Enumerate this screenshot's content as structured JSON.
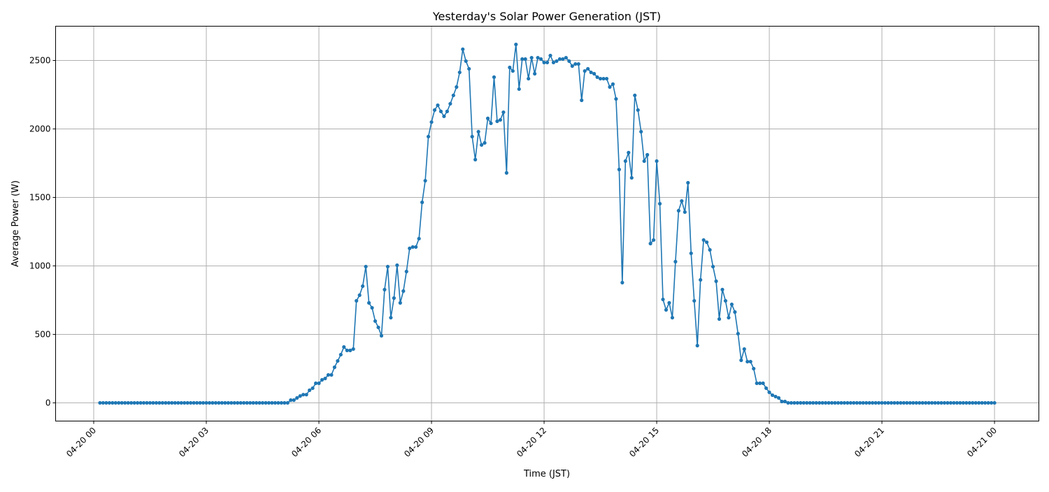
{
  "chart_data": {
    "type": "line",
    "title": "Yesterday's Solar Power Generation (JST)",
    "xlabel": "Time (JST)",
    "ylabel": "Average Power (W)",
    "xlim_hours_from": "04-20 00",
    "ylim": [
      -133,
      2750
    ],
    "grid": true,
    "color": "#1f77b4",
    "marker": "circle",
    "xtick_labels": [
      "04-20 00",
      "04-20 03",
      "04-20 06",
      "04-20 09",
      "04-20 12",
      "04-20 15",
      "04-20 18",
      "04-20 21",
      "04-21 00"
    ],
    "ytick_values": [
      0,
      500,
      1000,
      1500,
      2000,
      2500
    ],
    "series": [
      {
        "x": [
          "04-20 00:10",
          "04-20 00:15",
          "04-20 00:20",
          "04-20 00:25",
          "04-20 00:30",
          "04-20 00:35",
          "04-20 00:40",
          "04-20 00:45",
          "04-20 00:50",
          "04-20 00:55",
          "04-20 01:00",
          "04-20 01:05",
          "04-20 01:10",
          "04-20 01:15",
          "04-20 01:20",
          "04-20 01:25",
          "04-20 01:30",
          "04-20 01:35",
          "04-20 01:40",
          "04-20 01:45",
          "04-20 01:50",
          "04-20 01:55",
          "04-20 02:00",
          "04-20 02:05",
          "04-20 02:10",
          "04-20 02:15",
          "04-20 02:20",
          "04-20 02:25",
          "04-20 02:30",
          "04-20 02:35",
          "04-20 02:40",
          "04-20 02:45",
          "04-20 02:50",
          "04-20 02:55",
          "04-20 03:00",
          "04-20 03:05",
          "04-20 03:10",
          "04-20 03:15",
          "04-20 03:20",
          "04-20 03:25",
          "04-20 03:30",
          "04-20 03:35",
          "04-20 03:40",
          "04-20 03:45",
          "04-20 03:50",
          "04-20 03:55",
          "04-20 04:00",
          "04-20 04:05",
          "04-20 04:10",
          "04-20 04:15",
          "04-20 04:20",
          "04-20 04:25",
          "04-20 04:30",
          "04-20 04:35",
          "04-20 04:40",
          "04-20 04:45",
          "04-20 04:50",
          "04-20 04:55",
          "04-20 05:00",
          "04-20 05:05",
          "04-20 05:10",
          "04-20 05:15",
          "04-20 05:20",
          "04-20 05:25",
          "04-20 05:30",
          "04-20 05:35",
          "04-20 05:40",
          "04-20 05:45",
          "04-20 05:50",
          "04-20 05:55",
          "04-20 06:00",
          "04-20 06:05",
          "04-20 06:10",
          "04-20 06:15",
          "04-20 06:20",
          "04-20 06:25",
          "04-20 06:30",
          "04-20 06:35",
          "04-20 06:40",
          "04-20 06:45",
          "04-20 06:50",
          "04-20 06:55",
          "04-20 07:00",
          "04-20 07:05",
          "04-20 07:10",
          "04-20 07:15",
          "04-20 07:20",
          "04-20 07:25",
          "04-20 07:30",
          "04-20 07:35",
          "04-20 07:40",
          "04-20 07:45",
          "04-20 07:50",
          "04-20 07:55",
          "04-20 08:00",
          "04-20 08:05",
          "04-20 08:10",
          "04-20 08:15",
          "04-20 08:20",
          "04-20 08:25",
          "04-20 08:30",
          "04-20 08:35",
          "04-20 08:40",
          "04-20 08:45",
          "04-20 08:50",
          "04-20 08:55",
          "04-20 09:00",
          "04-20 09:05",
          "04-20 09:10",
          "04-20 09:15",
          "04-20 09:20",
          "04-20 09:25",
          "04-20 09:30",
          "04-20 09:35",
          "04-20 09:40",
          "04-20 09:45",
          "04-20 09:50",
          "04-20 09:55",
          "04-20 10:00",
          "04-20 10:05",
          "04-20 10:10",
          "04-20 10:15",
          "04-20 10:20",
          "04-20 10:25",
          "04-20 10:30",
          "04-20 10:35",
          "04-20 10:40",
          "04-20 10:45",
          "04-20 10:50",
          "04-20 10:55",
          "04-20 11:00",
          "04-20 11:05",
          "04-20 11:10",
          "04-20 11:15",
          "04-20 11:20",
          "04-20 11:25",
          "04-20 11:30",
          "04-20 11:35",
          "04-20 11:40",
          "04-20 11:45",
          "04-20 11:50",
          "04-20 11:55",
          "04-20 12:00",
          "04-20 12:05",
          "04-20 12:10",
          "04-20 12:15",
          "04-20 12:20",
          "04-20 12:25",
          "04-20 12:30",
          "04-20 12:35",
          "04-20 12:40",
          "04-20 12:45",
          "04-20 12:50",
          "04-20 12:55",
          "04-20 13:00",
          "04-20 13:05",
          "04-20 13:10",
          "04-20 13:15",
          "04-20 13:20",
          "04-20 13:25",
          "04-20 13:30",
          "04-20 13:35",
          "04-20 13:40",
          "04-20 13:45",
          "04-20 13:50",
          "04-20 13:55",
          "04-20 14:00",
          "04-20 14:05",
          "04-20 14:10",
          "04-20 14:15",
          "04-20 14:20",
          "04-20 14:25",
          "04-20 14:30",
          "04-20 14:35",
          "04-20 14:40",
          "04-20 14:45",
          "04-20 14:50",
          "04-20 14:55",
          "04-20 15:00",
          "04-20 15:05",
          "04-20 15:10",
          "04-20 15:15",
          "04-20 15:20",
          "04-20 15:25",
          "04-20 15:30",
          "04-20 15:35",
          "04-20 15:40",
          "04-20 15:45",
          "04-20 15:50",
          "04-20 15:55",
          "04-20 16:00",
          "04-20 16:05",
          "04-20 16:10",
          "04-20 16:15",
          "04-20 16:20",
          "04-20 16:25",
          "04-20 16:30",
          "04-20 16:35",
          "04-20 16:40",
          "04-20 16:45",
          "04-20 16:50",
          "04-20 16:55",
          "04-20 17:00",
          "04-20 17:05",
          "04-20 17:10",
          "04-20 17:15",
          "04-20 17:20",
          "04-20 17:25",
          "04-20 17:30",
          "04-20 17:35",
          "04-20 17:40",
          "04-20 17:45",
          "04-20 17:50",
          "04-20 17:55",
          "04-20 18:00",
          "04-20 18:05",
          "04-20 18:10",
          "04-20 18:15",
          "04-20 18:20",
          "04-20 18:25",
          "04-20 18:30",
          "04-20 18:35",
          "04-20 18:40",
          "04-20 18:45",
          "04-20 18:50",
          "04-20 18:55",
          "04-20 19:00",
          "04-20 19:05",
          "04-20 19:10",
          "04-20 19:15",
          "04-20 19:20",
          "04-20 19:25",
          "04-20 19:30",
          "04-20 19:35",
          "04-20 19:40",
          "04-20 19:45",
          "04-20 19:50",
          "04-20 19:55",
          "04-20 20:00",
          "04-20 20:05",
          "04-20 20:10",
          "04-20 20:15",
          "04-20 20:20",
          "04-20 20:25",
          "04-20 20:30",
          "04-20 20:35",
          "04-20 20:40",
          "04-20 20:45",
          "04-20 20:50",
          "04-20 20:55",
          "04-20 21:00",
          "04-20 21:05",
          "04-20 21:10",
          "04-20 21:15",
          "04-20 21:20",
          "04-20 21:25",
          "04-20 21:30",
          "04-20 21:35",
          "04-20 21:40",
          "04-20 21:45",
          "04-20 21:50",
          "04-20 21:55",
          "04-20 22:00",
          "04-20 22:05",
          "04-20 22:10",
          "04-20 22:15",
          "04-20 22:20",
          "04-20 22:25",
          "04-20 22:30",
          "04-20 22:35",
          "04-20 22:40",
          "04-20 22:45",
          "04-20 22:50",
          "04-20 22:55",
          "04-20 23:00",
          "04-20 23:05",
          "04-20 23:10",
          "04-20 23:15",
          "04-20 23:20",
          "04-20 23:25",
          "04-20 23:30",
          "04-20 23:35",
          "04-20 23:40",
          "04-20 23:45",
          "04-20 23:50",
          "04-20 23:55",
          "04-21 00:00"
        ],
        "values": [
          0,
          0,
          0,
          0,
          0,
          0,
          0,
          0,
          0,
          0,
          0,
          0,
          0,
          0,
          0,
          0,
          0,
          0,
          0,
          0,
          0,
          0,
          0,
          0,
          0,
          0,
          0,
          0,
          0,
          0,
          0,
          0,
          0,
          0,
          0,
          0,
          0,
          0,
          0,
          0,
          0,
          0,
          0,
          0,
          0,
          0,
          0,
          0,
          0,
          0,
          0,
          0,
          0,
          0,
          0,
          0,
          0,
          0,
          0,
          0,
          0,
          20,
          20,
          36,
          50,
          60,
          60,
          92,
          107,
          143,
          143,
          168,
          178,
          204,
          204,
          260,
          306,
          352,
          408,
          383,
          383,
          393,
          745,
          786,
          852,
          995,
          730,
          694,
          597,
          551,
          490,
          827,
          995,
          622,
          765,
          1005,
          730,
          816,
          959,
          1128,
          1138,
          1138,
          1199,
          1464,
          1622,
          1944,
          2050,
          2138,
          2173,
          2128,
          2092,
          2128,
          2184,
          2245,
          2306,
          2413,
          2582,
          2495,
          2439,
          1944,
          1776,
          1980,
          1883,
          1898,
          2077,
          2041,
          2378,
          2056,
          2066,
          2122,
          1679,
          2449,
          2423,
          2617,
          2291,
          2510,
          2510,
          2367,
          2520,
          2403,
          2520,
          2510,
          2485,
          2485,
          2536,
          2485,
          2495,
          2510,
          2510,
          2520,
          2495,
          2459,
          2474,
          2474,
          2209,
          2423,
          2439,
          2413,
          2403,
          2378,
          2367,
          2367,
          2367,
          2306,
          2327,
          2219,
          1704,
          878,
          1765,
          1827,
          1643,
          2245,
          2138,
          1980,
          1765,
          1811,
          1163,
          1189,
          1765,
          1454,
          755,
          679,
          730,
          622,
          1031,
          1403,
          1474,
          1393,
          1607,
          1092,
          745,
          418,
          898,
          1189,
          1173,
          1117,
          995,
          888,
          612,
          827,
          745,
          622,
          719,
          663,
          505,
          311,
          393,
          301,
          301,
          250,
          143,
          143,
          143,
          107,
          77,
          56,
          46,
          36,
          10,
          10,
          0,
          0,
          0,
          0,
          0,
          0,
          0,
          0,
          0,
          0,
          0,
          0,
          0,
          0,
          0,
          0,
          0,
          0,
          0,
          0,
          0,
          0,
          0,
          0,
          0,
          0,
          0,
          0,
          0,
          0,
          0,
          0,
          0,
          0,
          0,
          0,
          0,
          0,
          0,
          0,
          0,
          0,
          0,
          0,
          0,
          0,
          0,
          0,
          0,
          0,
          0,
          0,
          0,
          0,
          0,
          0,
          0,
          0,
          0,
          0,
          0,
          0,
          0,
          0,
          0,
          0,
          0
        ]
      }
    ]
  }
}
